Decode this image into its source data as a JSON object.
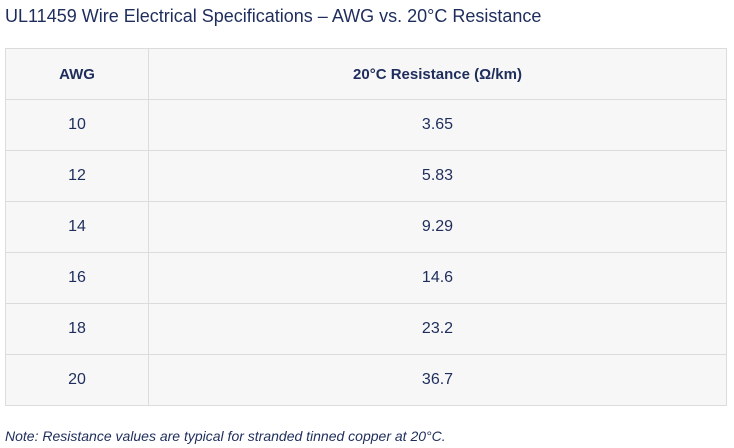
{
  "header": {
    "title": "UL11459 Wire Electrical Specifications – AWG vs. 20°C Resistance"
  },
  "table": {
    "columns": [
      "AWG",
      "20°C Resistance (Ω/km)"
    ],
    "rows": [
      [
        10,
        3.65
      ],
      [
        12,
        5.83
      ],
      [
        14,
        9.29
      ],
      [
        16,
        14.6
      ],
      [
        18,
        23.2
      ],
      [
        20,
        36.7
      ]
    ]
  },
  "note": "Note: Resistance values are typical for stranded tinned copper at 20°C."
}
